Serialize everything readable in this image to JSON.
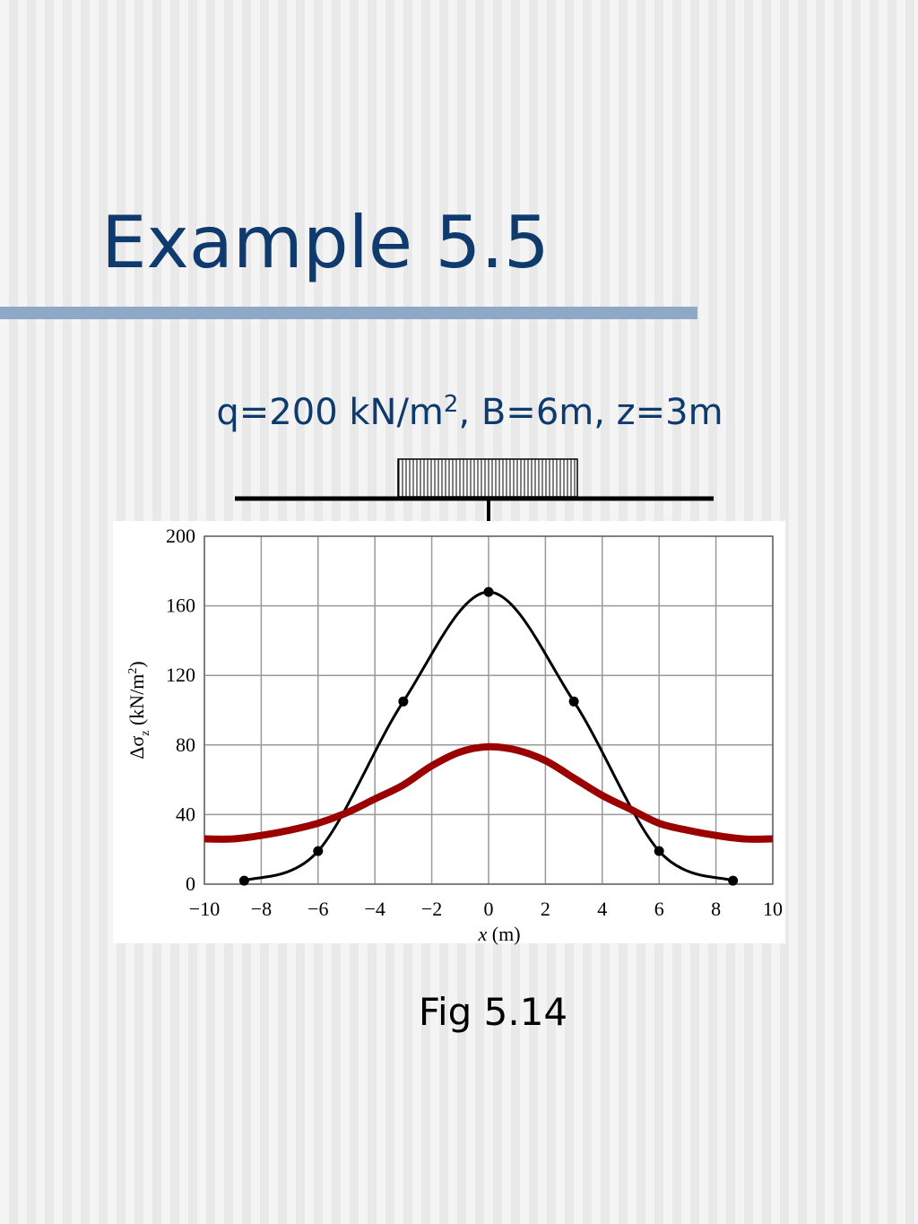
{
  "title": "Example 5.5",
  "subtitle": [
    "q=200 kN/m",
    "2",
    ", B=6m, z=3m"
  ],
  "caption": "Fig 5.14",
  "chart_data": {
    "type": "line",
    "xlabel": [
      "x",
      " (m)"
    ],
    "ylabel": [
      "Δσ",
      "z",
      " (kN/m",
      "2",
      ")"
    ],
    "xlim": [
      -10,
      10
    ],
    "ylim": [
      0,
      200
    ],
    "xticks": [
      {
        "value": -10,
        "label": "−10"
      },
      {
        "value": -8,
        "label": "−8"
      },
      {
        "value": -6,
        "label": "−6"
      },
      {
        "value": -4,
        "label": "−4"
      },
      {
        "value": -2,
        "label": "−2"
      },
      0,
      2,
      4,
      6,
      8,
      10
    ],
    "yticks": [
      0,
      40,
      80,
      120,
      160,
      200
    ],
    "grid": true,
    "series": [
      {
        "color": "#000000",
        "markers": true,
        "x": [
          -8.6,
          -6,
          -3,
          0,
          3,
          6,
          8.6
        ],
        "values": [
          2,
          19,
          105,
          168,
          105,
          19,
          2
        ]
      },
      {
        "color": "#9b0000",
        "markers": false,
        "x": [
          -10,
          -9,
          -8,
          -7,
          -6,
          -5,
          -4,
          -3,
          -2,
          -1,
          0,
          1,
          2,
          3,
          4,
          5,
          6,
          7,
          8,
          9,
          10
        ],
        "values": [
          26,
          26,
          28,
          31,
          35,
          41,
          49,
          57,
          68,
          76,
          79,
          77,
          71,
          61,
          51,
          43,
          35,
          31,
          28,
          26,
          26
        ]
      }
    ]
  }
}
